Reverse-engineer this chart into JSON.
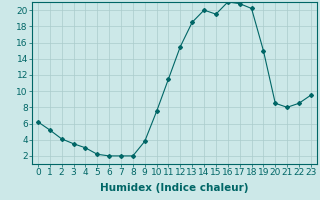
{
  "x": [
    0,
    1,
    2,
    3,
    4,
    5,
    6,
    7,
    8,
    9,
    10,
    11,
    12,
    13,
    14,
    15,
    16,
    17,
    18,
    19,
    20,
    21,
    22,
    23
  ],
  "y": [
    6.2,
    5.2,
    4.1,
    3.5,
    3.0,
    2.2,
    2.0,
    2.0,
    2.0,
    3.8,
    7.5,
    11.5,
    15.5,
    18.5,
    20.0,
    19.5,
    21.0,
    20.8,
    20.2,
    15.0,
    8.5,
    8.0,
    8.5,
    9.5
  ],
  "xlabel": "Humidex (Indice chaleur)",
  "xlim": [
    -0.5,
    23.5
  ],
  "ylim": [
    1,
    21
  ],
  "yticks": [
    2,
    4,
    6,
    8,
    10,
    12,
    14,
    16,
    18,
    20
  ],
  "xticks": [
    0,
    1,
    2,
    3,
    4,
    5,
    6,
    7,
    8,
    9,
    10,
    11,
    12,
    13,
    14,
    15,
    16,
    17,
    18,
    19,
    20,
    21,
    22,
    23
  ],
  "line_color": "#006666",
  "marker": "D",
  "marker_size": 2.0,
  "bg_color": "#cce8e8",
  "grid_color": "#aacccc",
  "xlabel_fontsize": 7.5,
  "tick_fontsize": 6.5,
  "tick_color": "#006666"
}
